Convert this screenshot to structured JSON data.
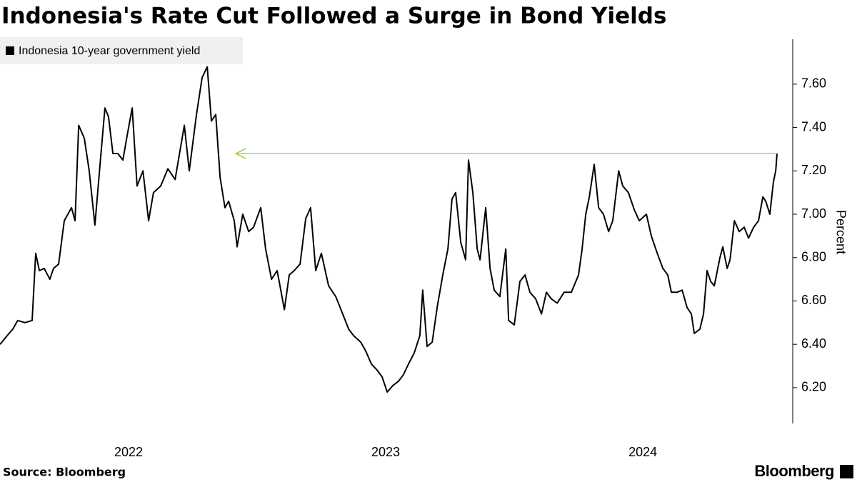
{
  "chart_data": {
    "type": "line",
    "title": "Indonesia's Rate Cut Followed a Surge in Bond Yields",
    "y_label": "Percent",
    "source": "Source: Bloomberg",
    "brand": "Bloomberg",
    "series": [
      {
        "name": "Indonesia 10-year government yield",
        "color": "#000000",
        "x": [
          2022.0,
          2022.028,
          2022.05,
          2022.069,
          2022.097,
          2022.125,
          2022.139,
          2022.153,
          2022.172,
          2022.194,
          2022.208,
          2022.228,
          2022.25,
          2022.278,
          2022.292,
          2022.306,
          2022.328,
          2022.347,
          2022.369,
          2022.389,
          2022.408,
          2022.422,
          2022.439,
          2022.458,
          2022.478,
          2022.494,
          2022.514,
          2022.533,
          2022.556,
          2022.578,
          2022.597,
          2022.625,
          2022.653,
          2022.681,
          2022.717,
          2022.736,
          2022.764,
          2022.786,
          2022.806,
          2022.822,
          2022.839,
          2022.856,
          2022.875,
          2022.889,
          2022.911,
          2022.922,
          2022.944,
          2022.967,
          2022.986,
          2023.014,
          2023.033,
          2023.056,
          2023.078,
          2023.106,
          2023.125,
          2023.144,
          2023.167,
          2023.189,
          2023.208,
          2023.228,
          2023.25,
          2023.278,
          2023.306,
          2023.333,
          2023.356,
          2023.375,
          2023.403,
          2023.422,
          2023.444,
          2023.467,
          2023.486,
          2023.506,
          2023.528,
          2023.55,
          2023.569,
          2023.589,
          2023.611,
          2023.633,
          2023.644,
          2023.661,
          2023.681,
          2023.7,
          2023.722,
          2023.742,
          2023.758,
          2023.772,
          2023.792,
          2023.811,
          2023.822,
          2023.839,
          2023.856,
          2023.867,
          2023.889,
          2023.906,
          2023.922,
          2023.944,
          2023.967,
          2023.978,
          2024.0,
          2024.022,
          2024.042,
          2024.061,
          2024.083,
          2024.106,
          2024.125,
          2024.144,
          2024.167,
          2024.194,
          2024.222,
          2024.25,
          2024.264,
          2024.278,
          2024.292,
          2024.311,
          2024.328,
          2024.347,
          2024.367,
          2024.383,
          2024.406,
          2024.422,
          2024.444,
          2024.467,
          2024.486,
          2024.514,
          2024.533,
          2024.556,
          2024.578,
          2024.597,
          2024.611,
          2024.633,
          2024.653,
          2024.672,
          2024.689,
          2024.7,
          2024.722,
          2024.736,
          2024.75,
          2024.764,
          2024.778,
          2024.8,
          2024.811,
          2024.828,
          2024.839,
          2024.856,
          2024.875,
          2024.894,
          2024.911,
          2024.931,
          2024.95,
          2024.967,
          2024.978,
          2024.994,
          2025.008,
          2025.017,
          2025.022
        ],
        "values": [
          6.4,
          6.44,
          6.47,
          6.51,
          6.5,
          6.51,
          6.82,
          6.74,
          6.75,
          6.7,
          6.75,
          6.77,
          6.97,
          7.03,
          6.97,
          7.41,
          7.35,
          7.2,
          6.95,
          7.23,
          7.49,
          7.45,
          7.28,
          7.28,
          7.25,
          7.36,
          7.49,
          7.13,
          7.2,
          6.97,
          7.1,
          7.13,
          7.21,
          7.16,
          7.41,
          7.2,
          7.46,
          7.63,
          7.68,
          7.43,
          7.46,
          7.17,
          7.03,
          7.06,
          6.97,
          6.85,
          7.0,
          6.92,
          6.94,
          7.03,
          6.84,
          6.7,
          6.74,
          6.56,
          6.72,
          6.74,
          6.77,
          6.98,
          7.03,
          6.74,
          6.82,
          6.67,
          6.62,
          6.54,
          6.47,
          6.44,
          6.41,
          6.37,
          6.31,
          6.28,
          6.25,
          6.18,
          6.21,
          6.23,
          6.26,
          6.31,
          6.36,
          6.44,
          6.65,
          6.39,
          6.41,
          6.57,
          6.72,
          6.84,
          7.07,
          7.1,
          6.87,
          6.79,
          7.25,
          7.1,
          6.84,
          6.79,
          7.03,
          6.75,
          6.65,
          6.62,
          6.84,
          6.51,
          6.49,
          6.69,
          6.72,
          6.64,
          6.61,
          6.54,
          6.64,
          6.61,
          6.59,
          6.64,
          6.64,
          6.72,
          6.84,
          7.0,
          7.08,
          7.23,
          7.03,
          7.0,
          6.92,
          6.97,
          7.2,
          7.13,
          7.1,
          7.02,
          6.97,
          7.0,
          6.9,
          6.82,
          6.75,
          6.72,
          6.64,
          6.64,
          6.65,
          6.57,
          6.54,
          6.45,
          6.47,
          6.54,
          6.74,
          6.69,
          6.67,
          6.8,
          6.85,
          6.75,
          6.79,
          6.97,
          6.92,
          6.94,
          6.89,
          6.94,
          6.97,
          7.08,
          7.06,
          7.0,
          7.15,
          7.2,
          7.28
        ]
      }
    ],
    "annotation_line": {
      "y": 7.28,
      "x": [
        2022.917,
        2025.022
      ],
      "color": "#8fd42a"
    },
    "xlim": [
      2022,
      2025.083
    ],
    "xticks": [
      {
        "value": 2022.5,
        "label": "2022"
      },
      {
        "value": 2023.5,
        "label": "2023"
      },
      {
        "value": 2024.5,
        "label": "2024"
      }
    ],
    "ylim": [
      6.035,
      7.807
    ],
    "yticks": [
      {
        "value": 6.2,
        "label": "6.20"
      },
      {
        "value": 6.4,
        "label": "6.40"
      },
      {
        "value": 6.6,
        "label": "6.60"
      },
      {
        "value": 6.8,
        "label": "6.80"
      },
      {
        "value": 7.0,
        "label": "7.00"
      },
      {
        "value": 7.2,
        "label": "7.20"
      },
      {
        "value": 7.4,
        "label": "7.40"
      },
      {
        "value": 7.6,
        "label": "7.60"
      }
    ],
    "legend": "top-left"
  }
}
